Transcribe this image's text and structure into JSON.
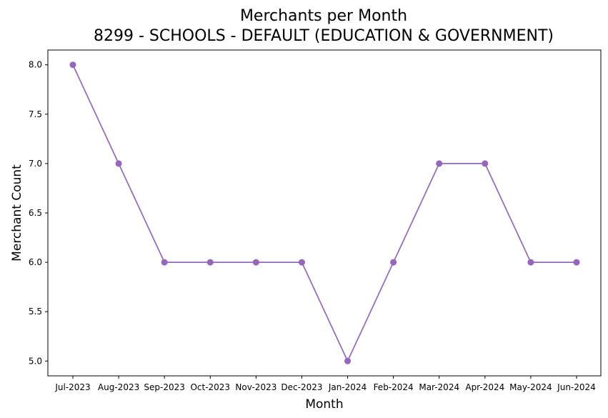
{
  "chart_data": {
    "type": "line",
    "title": "Merchants per Month",
    "subtitle": "8299 - SCHOOLS - DEFAULT (EDUCATION & GOVERNMENT)",
    "xlabel": "Month",
    "ylabel": "Merchant Count",
    "categories": [
      "Jul-2023",
      "Aug-2023",
      "Sep-2023",
      "Oct-2023",
      "Nov-2023",
      "Dec-2023",
      "Jan-2024",
      "Feb-2024",
      "Mar-2024",
      "Apr-2024",
      "May-2024",
      "Jun-2024"
    ],
    "series": [
      {
        "values": [
          8,
          7,
          6,
          6,
          6,
          6,
          5,
          6,
          7,
          7,
          6,
          6
        ],
        "color": "#9467bd",
        "marker": "circle"
      }
    ],
    "ylim": [
      4.85,
      8.15
    ],
    "yticks": [
      5.0,
      5.5,
      6.0,
      6.5,
      7.0,
      7.5,
      8.0
    ],
    "ytick_labels": [
      "5.0",
      "5.5",
      "6.0",
      "6.5",
      "7.0",
      "7.5",
      "8.0"
    ],
    "grid": false,
    "legend": "none"
  }
}
